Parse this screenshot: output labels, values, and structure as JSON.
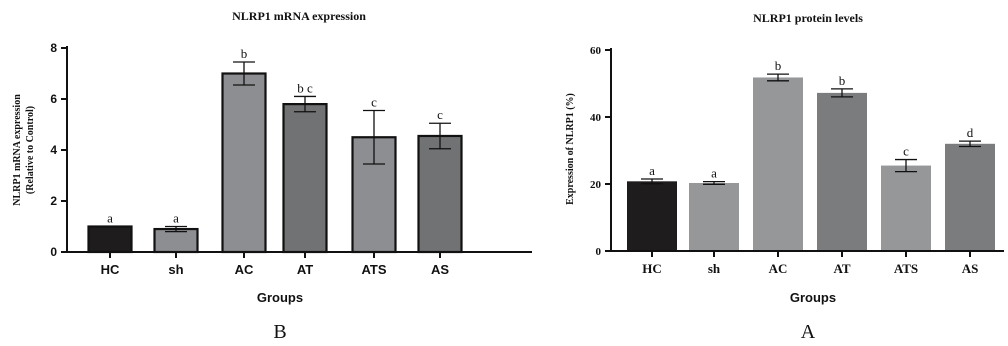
{
  "chart_data": [
    {
      "type": "bar",
      "panel_label": "B",
      "title": "NLRP1 mRNA expression",
      "ylabel": "NLRP1 mRNA expression\n(Relative to Control)",
      "xlabel": "Groups",
      "categories": [
        "HC",
        "sh",
        "AC",
        "AT",
        "ATS",
        "AS"
      ],
      "values": [
        1.0,
        0.9,
        7.0,
        5.8,
        4.5,
        4.55
      ],
      "errors": [
        0.0,
        0.1,
        0.45,
        0.3,
        1.05,
        0.5
      ],
      "significance_letters": [
        "a",
        "a",
        "b",
        "b c",
        "c",
        "c"
      ],
      "colors": [
        "#1e1c1d",
        "#8c8e91",
        "#8c8e91",
        "#707274",
        "#8c8e91",
        "#707274"
      ],
      "ylim": [
        0,
        8
      ],
      "yticks": [
        0,
        2,
        4,
        6,
        8
      ]
    },
    {
      "type": "bar",
      "panel_label": "A",
      "title": "NLRP1  protein levels",
      "ylabel": "Expression of NLRP1 (%)",
      "xlabel": "Groups",
      "categories": [
        "HC",
        "sh",
        "AC",
        "AT",
        "ATS",
        "AS"
      ],
      "values": [
        20.8,
        20.3,
        51.8,
        47.2,
        25.5,
        32.0
      ],
      "errors": [
        0.7,
        0.4,
        1.0,
        1.2,
        1.8,
        0.8
      ],
      "significance_letters": [
        "a",
        "a",
        "b",
        "b",
        "c",
        "d"
      ],
      "colors": [
        "#1e1c1d",
        "#959799",
        "#959799",
        "#7a7c7e",
        "#959799",
        "#7a7c7e"
      ],
      "ylim": [
        0,
        60
      ],
      "yticks": [
        0,
        20,
        40,
        60
      ]
    }
  ]
}
